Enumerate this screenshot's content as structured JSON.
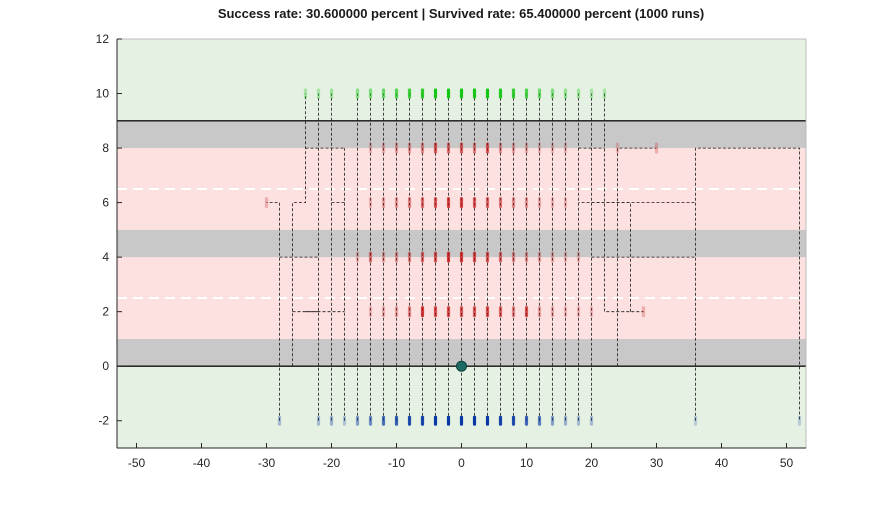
{
  "chart_data": {
    "type": "scatter",
    "title": "Success rate: 30.600000 percent | Survived rate: 65.400000 percent (1000 runs)",
    "xlabel": "",
    "ylabel": "",
    "xlim": [
      -53,
      53
    ],
    "ylim": [
      -3,
      12
    ],
    "xticks": [
      -50,
      -40,
      -30,
      -20,
      -10,
      0,
      10,
      20,
      30,
      40,
      50
    ],
    "yticks": [
      -2,
      0,
      2,
      4,
      6,
      8,
      10,
      12
    ],
    "xtick_labels": [
      "-50",
      "-40",
      "-30",
      "-20",
      "-10",
      "0",
      "10",
      "20",
      "30",
      "40",
      "50"
    ],
    "ytick_labels": [
      "-2",
      "0",
      "2",
      "4",
      "6",
      "8",
      "10",
      "12"
    ],
    "grid": false,
    "regions": [
      {
        "name": "safe-zone",
        "y": [
          -3,
          12
        ],
        "color": "#e5f1e2"
      },
      {
        "name": "sidewalk-bottom",
        "y": [
          0,
          1
        ],
        "color": "#c8c8c8"
      },
      {
        "name": "road-lower",
        "y": [
          1,
          4
        ],
        "color": "#fde0e0"
      },
      {
        "name": "median",
        "y": [
          4,
          5
        ],
        "color": "#c8c8c8"
      },
      {
        "name": "road-upper",
        "y": [
          5,
          8
        ],
        "color": "#fde0e0"
      },
      {
        "name": "sidewalk-top",
        "y": [
          8,
          9
        ],
        "color": "#c8c8c8"
      }
    ],
    "boundary_lines": [
      0,
      9
    ],
    "lane_dividers": [
      2.5,
      6.5
    ],
    "start_point": {
      "x": 0,
      "y": 0,
      "color": "#1f6b63"
    },
    "series": [
      {
        "role": "start-positions",
        "color": "#0a3aa8",
        "y": -2,
        "points": [
          {
            "x": -28,
            "w": 0.3
          },
          {
            "x": -22,
            "w": 0.3
          },
          {
            "x": -20,
            "w": 0.35
          },
          {
            "x": -18,
            "w": 0.25
          },
          {
            "x": -16,
            "w": 0.45
          },
          {
            "x": -14,
            "w": 0.55
          },
          {
            "x": -12,
            "w": 0.7
          },
          {
            "x": -10,
            "w": 0.8
          },
          {
            "x": -8,
            "w": 0.9
          },
          {
            "x": -6,
            "w": 0.95
          },
          {
            "x": -4,
            "w": 1
          },
          {
            "x": -2,
            "w": 1
          },
          {
            "x": 0,
            "w": 1
          },
          {
            "x": 2,
            "w": 1
          },
          {
            "x": 4,
            "w": 1
          },
          {
            "x": 6,
            "w": 0.95
          },
          {
            "x": 8,
            "w": 0.9
          },
          {
            "x": 10,
            "w": 0.75
          },
          {
            "x": 12,
            "w": 0.65
          },
          {
            "x": 14,
            "w": 0.45
          },
          {
            "x": 16,
            "w": 0.35
          },
          {
            "x": 18,
            "w": 0.3
          },
          {
            "x": 20,
            "w": 0.3
          },
          {
            "x": 36,
            "w": 0.2
          },
          {
            "x": 52,
            "w": 0.2
          }
        ]
      },
      {
        "role": "goal-positions",
        "color": "#17c717",
        "y": 10,
        "points": [
          {
            "x": -24,
            "w": 0.3
          },
          {
            "x": -22,
            "w": 0.3
          },
          {
            "x": -20,
            "w": 0.35
          },
          {
            "x": -16,
            "w": 0.45
          },
          {
            "x": -14,
            "w": 0.5
          },
          {
            "x": -12,
            "w": 0.6
          },
          {
            "x": -10,
            "w": 0.7
          },
          {
            "x": -8,
            "w": 0.8
          },
          {
            "x": -6,
            "w": 0.9
          },
          {
            "x": -4,
            "w": 1
          },
          {
            "x": -2,
            "w": 1
          },
          {
            "x": 0,
            "w": 1
          },
          {
            "x": 2,
            "w": 1
          },
          {
            "x": 4,
            "w": 1
          },
          {
            "x": 6,
            "w": 0.95
          },
          {
            "x": 8,
            "w": 0.85
          },
          {
            "x": 10,
            "w": 0.75
          },
          {
            "x": 12,
            "w": 0.6
          },
          {
            "x": 14,
            "w": 0.5
          },
          {
            "x": 16,
            "w": 0.4
          },
          {
            "x": 18,
            "w": 0.35
          },
          {
            "x": 20,
            "w": 0.3
          },
          {
            "x": 22,
            "w": 0.3
          }
        ]
      },
      {
        "role": "collisions",
        "color": "#c41414",
        "points": [
          {
            "x": -14,
            "y": 2,
            "w": 0.2
          },
          {
            "x": -12,
            "y": 2,
            "w": 0.25
          },
          {
            "x": -10,
            "y": 2,
            "w": 0.3
          },
          {
            "x": -8,
            "y": 2,
            "w": 0.45
          },
          {
            "x": -6,
            "y": 2,
            "w": 0.8
          },
          {
            "x": -4,
            "y": 2,
            "w": 0.7
          },
          {
            "x": -2,
            "y": 2,
            "w": 0.7
          },
          {
            "x": 0,
            "y": 2,
            "w": 0.65
          },
          {
            "x": 2,
            "y": 2,
            "w": 0.65
          },
          {
            "x": 4,
            "y": 2,
            "w": 0.7
          },
          {
            "x": 6,
            "y": 2,
            "w": 0.6
          },
          {
            "x": 8,
            "y": 2,
            "w": 0.45
          },
          {
            "x": 10,
            "y": 2,
            "w": 0.7
          },
          {
            "x": 12,
            "y": 2,
            "w": 0.3
          },
          {
            "x": 14,
            "y": 2,
            "w": 0.25
          },
          {
            "x": 16,
            "y": 2,
            "w": 0.2
          },
          {
            "x": 18,
            "y": 2,
            "w": 0.2
          },
          {
            "x": 20,
            "y": 2,
            "w": 0.2
          },
          {
            "x": 28,
            "y": 2,
            "w": 0.25
          },
          {
            "x": -16,
            "y": 4,
            "w": 0.2
          },
          {
            "x": -14,
            "y": 4,
            "w": 0.5
          },
          {
            "x": -12,
            "y": 4,
            "w": 0.3
          },
          {
            "x": -10,
            "y": 4,
            "w": 0.35
          },
          {
            "x": -8,
            "y": 4,
            "w": 0.45
          },
          {
            "x": -6,
            "y": 4,
            "w": 0.55
          },
          {
            "x": -4,
            "y": 4,
            "w": 0.65
          },
          {
            "x": -2,
            "y": 4,
            "w": 0.8
          },
          {
            "x": 0,
            "y": 4,
            "w": 0.8
          },
          {
            "x": 2,
            "y": 4,
            "w": 0.7
          },
          {
            "x": 4,
            "y": 4,
            "w": 0.65
          },
          {
            "x": 6,
            "y": 4,
            "w": 0.55
          },
          {
            "x": 8,
            "y": 4,
            "w": 0.4
          },
          {
            "x": 10,
            "y": 4,
            "w": 0.35
          },
          {
            "x": 12,
            "y": 4,
            "w": 0.3
          },
          {
            "x": 14,
            "y": 4,
            "w": 0.25
          },
          {
            "x": 16,
            "y": 4,
            "w": 0.2
          },
          {
            "x": 18,
            "y": 4,
            "w": 0.2
          },
          {
            "x": -30,
            "y": 6,
            "w": 0.25
          },
          {
            "x": -14,
            "y": 6,
            "w": 0.2
          },
          {
            "x": -12,
            "y": 6,
            "w": 0.3
          },
          {
            "x": -10,
            "y": 6,
            "w": 0.35
          },
          {
            "x": -8,
            "y": 6,
            "w": 0.45
          },
          {
            "x": -6,
            "y": 6,
            "w": 0.55
          },
          {
            "x": -4,
            "y": 6,
            "w": 0.65
          },
          {
            "x": -2,
            "y": 6,
            "w": 0.75
          },
          {
            "x": 0,
            "y": 6,
            "w": 0.75
          },
          {
            "x": 2,
            "y": 6,
            "w": 0.65
          },
          {
            "x": 4,
            "y": 6,
            "w": 0.6
          },
          {
            "x": 6,
            "y": 6,
            "w": 0.5
          },
          {
            "x": 8,
            "y": 6,
            "w": 0.4
          },
          {
            "x": 10,
            "y": 6,
            "w": 0.35
          },
          {
            "x": 12,
            "y": 6,
            "w": 0.25
          },
          {
            "x": 14,
            "y": 6,
            "w": 0.2
          },
          {
            "x": 16,
            "y": 6,
            "w": 0.2
          },
          {
            "x": -14,
            "y": 8,
            "w": 0.2
          },
          {
            "x": -12,
            "y": 8,
            "w": 0.25
          },
          {
            "x": -10,
            "y": 8,
            "w": 0.3
          },
          {
            "x": -8,
            "y": 8,
            "w": 0.35
          },
          {
            "x": -6,
            "y": 8,
            "w": 0.4
          },
          {
            "x": -4,
            "y": 8,
            "w": 0.65
          },
          {
            "x": -2,
            "y": 8,
            "w": 0.55
          },
          {
            "x": 0,
            "y": 8,
            "w": 0.6
          },
          {
            "x": 2,
            "y": 8,
            "w": 0.45
          },
          {
            "x": 4,
            "y": 8,
            "w": 0.65
          },
          {
            "x": 6,
            "y": 8,
            "w": 0.35
          },
          {
            "x": 8,
            "y": 8,
            "w": 0.3
          },
          {
            "x": 10,
            "y": 8,
            "w": 0.25
          },
          {
            "x": 12,
            "y": 8,
            "w": 0.2
          },
          {
            "x": 14,
            "y": 8,
            "w": 0.2
          },
          {
            "x": 16,
            "y": 8,
            "w": 0.2
          },
          {
            "x": 24,
            "y": 8,
            "w": 0.2
          },
          {
            "x": 30,
            "y": 8,
            "w": 0.25
          }
        ]
      }
    ],
    "paths": [
      {
        "x": -28,
        "points": [
          [
            -28,
            -2
          ],
          [
            -28,
            6
          ],
          [
            -30,
            6
          ]
        ]
      },
      {
        "x": -22,
        "points": [
          [
            -22,
            -2
          ],
          [
            -22,
            10
          ]
        ]
      },
      {
        "x": -20,
        "points": [
          [
            -20,
            -2
          ],
          [
            -20,
            10
          ]
        ]
      },
      {
        "x": -18,
        "points": [
          [
            -18,
            -2
          ],
          [
            -18,
            8
          ]
        ]
      },
      {
        "x": -16,
        "points": [
          [
            -16,
            -2
          ],
          [
            -16,
            10
          ]
        ]
      },
      {
        "x": -14,
        "points": [
          [
            -14,
            -2
          ],
          [
            -14,
            10
          ]
        ]
      },
      {
        "x": -12,
        "points": [
          [
            -12,
            -2
          ],
          [
            -12,
            10
          ]
        ]
      },
      {
        "x": -10,
        "points": [
          [
            -10,
            -2
          ],
          [
            -10,
            10
          ]
        ]
      },
      {
        "x": -8,
        "points": [
          [
            -8,
            -2
          ],
          [
            -8,
            10
          ]
        ]
      },
      {
        "x": -6,
        "points": [
          [
            -6,
            -2
          ],
          [
            -6,
            10
          ]
        ]
      },
      {
        "x": -4,
        "points": [
          [
            -4,
            -2
          ],
          [
            -4,
            10
          ]
        ]
      },
      {
        "x": -2,
        "points": [
          [
            -2,
            -2
          ],
          [
            -2,
            10
          ]
        ]
      },
      {
        "x": 0,
        "points": [
          [
            0,
            -2
          ],
          [
            0,
            10
          ]
        ]
      },
      {
        "x": 2,
        "points": [
          [
            2,
            -2
          ],
          [
            2,
            10
          ]
        ]
      },
      {
        "x": 4,
        "points": [
          [
            4,
            -2
          ],
          [
            4,
            10
          ]
        ]
      },
      {
        "x": 6,
        "points": [
          [
            6,
            -2
          ],
          [
            6,
            10
          ]
        ]
      },
      {
        "x": 8,
        "points": [
          [
            8,
            -2
          ],
          [
            8,
            10
          ]
        ]
      },
      {
        "x": 10,
        "points": [
          [
            10,
            -2
          ],
          [
            10,
            10
          ]
        ]
      },
      {
        "x": 12,
        "points": [
          [
            12,
            -2
          ],
          [
            12,
            10
          ]
        ]
      },
      {
        "x": 14,
        "points": [
          [
            14,
            -2
          ],
          [
            14,
            10
          ]
        ]
      },
      {
        "x": 16,
        "points": [
          [
            16,
            -2
          ],
          [
            16,
            10
          ]
        ]
      },
      {
        "x": 18,
        "points": [
          [
            18,
            -2
          ],
          [
            18,
            10
          ]
        ]
      },
      {
        "x": 20,
        "points": [
          [
            20,
            -2
          ],
          [
            20,
            10
          ]
        ]
      },
      {
        "x": 36,
        "points": [
          [
            36,
            -2
          ],
          [
            36,
            8
          ],
          [
            52,
            8
          ],
          [
            52,
            -2
          ]
        ]
      },
      {
        "x": -26,
        "points": [
          [
            -26,
            0
          ],
          [
            -26,
            6
          ],
          [
            -24,
            6
          ],
          [
            -24,
            10
          ]
        ]
      },
      {
        "x": -28,
        "points": [
          [
            -28,
            4
          ],
          [
            -22,
            4
          ]
        ]
      },
      {
        "x": -26,
        "points": [
          [
            -26,
            2
          ],
          [
            -18,
            2
          ]
        ]
      },
      {
        "x": -24,
        "points": [
          [
            -24,
            8
          ],
          [
            -18,
            8
          ]
        ]
      },
      {
        "x": 22,
        "points": [
          [
            22,
            10
          ],
          [
            22,
            2
          ],
          [
            28,
            2
          ]
        ]
      },
      {
        "x": 24,
        "points": [
          [
            24,
            0
          ],
          [
            24,
            8
          ],
          [
            30,
            8
          ]
        ]
      },
      {
        "x": 26,
        "points": [
          [
            26,
            2
          ],
          [
            26,
            6
          ],
          [
            18,
            6
          ]
        ]
      },
      {
        "x": 20,
        "points": [
          [
            20,
            4
          ],
          [
            36,
            4
          ]
        ]
      },
      {
        "x": -20,
        "points": [
          [
            -20,
            6
          ],
          [
            -18,
            6
          ]
        ]
      },
      {
        "x": -22,
        "points": [
          [
            -22,
            2
          ],
          [
            -24,
            2
          ]
        ]
      },
      {
        "x": 20,
        "points": [
          [
            20,
            6
          ],
          [
            36,
            6
          ]
        ]
      },
      {
        "x": 18,
        "points": [
          [
            18,
            8
          ],
          [
            22,
            8
          ]
        ]
      }
    ]
  }
}
